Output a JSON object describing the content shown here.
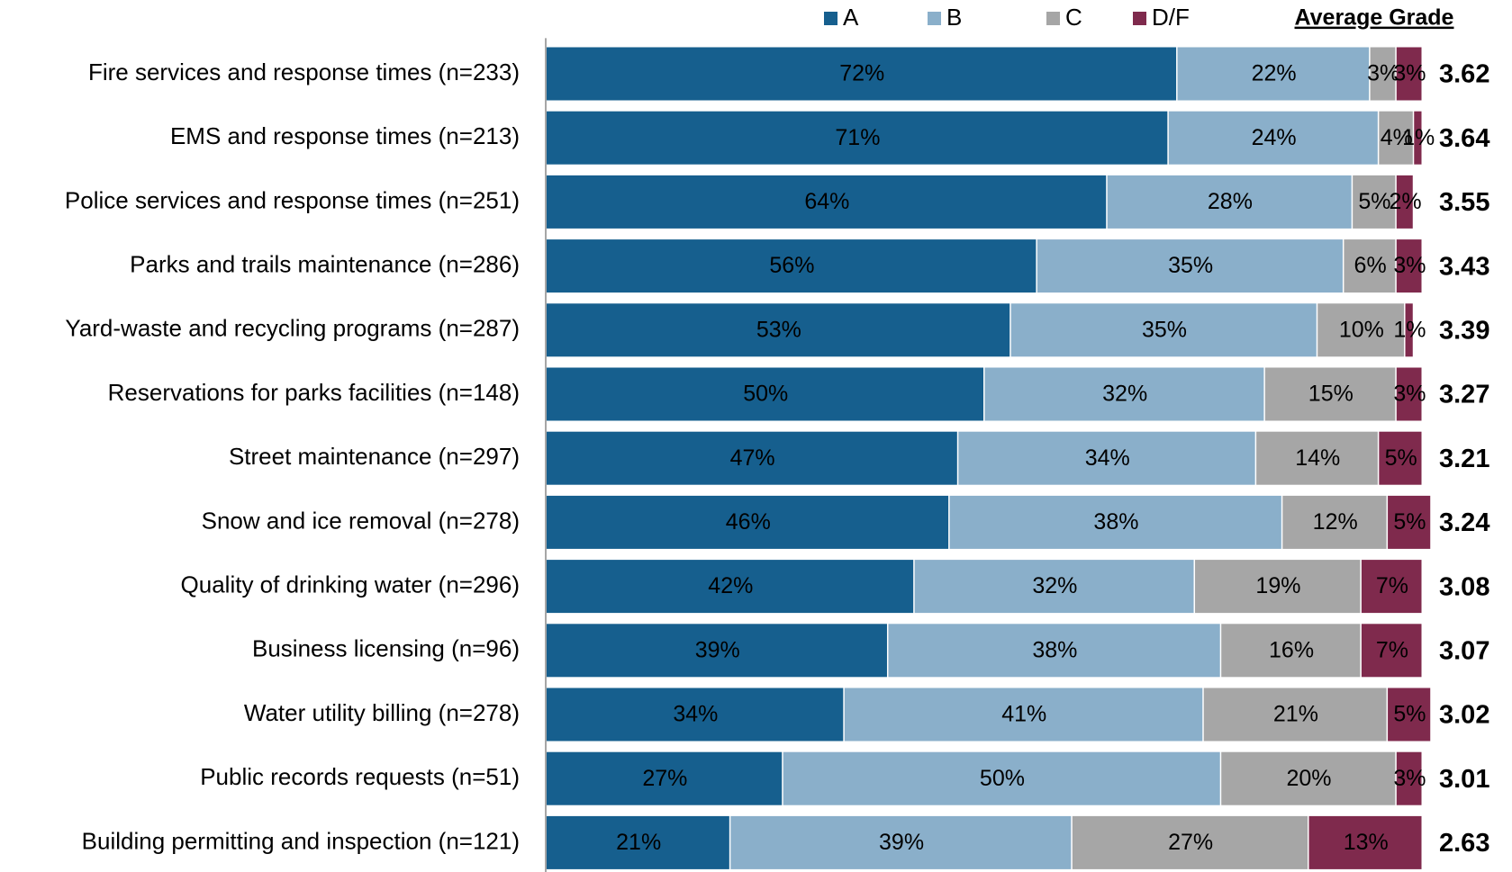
{
  "chart_data": {
    "type": "stacked-barh",
    "categories": [
      "Fire services and response times (n=233)",
      "EMS and response times (n=213)",
      "Police services and response times (n=251)",
      "Parks and trails maintenance (n=286)",
      "Yard-waste and recycling programs (n=287)",
      "Reservations for parks facilities  (n=148)",
      "Street maintenance (n=297)",
      "Snow and ice removal (n=278)",
      "Quality of drinking water (n=296)",
      "Business licensing  (n=96)",
      "Water utility billing (n=278)",
      "Public records requests  (n=51)",
      "Building permitting and inspection  (n=121)"
    ],
    "series": [
      {
        "name": "A",
        "color": "#165f8e",
        "values": [
          72,
          71,
          64,
          56,
          53,
          50,
          47,
          46,
          42,
          39,
          34,
          27,
          21
        ],
        "value_labels": [
          "72%",
          "71%",
          "64%",
          "56%",
          "53%",
          "50%",
          "47%",
          "46%",
          "42%",
          "39%",
          "34%",
          "27%",
          "21%"
        ]
      },
      {
        "name": "B",
        "color": "#8aafca",
        "values": [
          22,
          24,
          28,
          35,
          35,
          32,
          34,
          38,
          32,
          38,
          41,
          50,
          39
        ],
        "value_labels": [
          "22%",
          "24%",
          "28%",
          "35%",
          "35%",
          "32%",
          "34%",
          "38%",
          "32%",
          "38%",
          "41%",
          "50%",
          "39%"
        ]
      },
      {
        "name": "C",
        "color": "#a6a6a6",
        "values": [
          3,
          4,
          5,
          6,
          10,
          15,
          14,
          12,
          19,
          16,
          21,
          20,
          27
        ],
        "value_labels": [
          "3%",
          "4%",
          "5%",
          "6%",
          "10%",
          "15%",
          "14%",
          "12%",
          "19%",
          "16%",
          "21%",
          "20%",
          "27%"
        ]
      },
      {
        "name": "D/F",
        "color": "#7f2a4d",
        "values": [
          3,
          1,
          2,
          3,
          1,
          3,
          5,
          5,
          7,
          7,
          5,
          3,
          13
        ],
        "value_labels": [
          "3%",
          "1%",
          "2%",
          "3%",
          "1%",
          "3%",
          "5%",
          "5%",
          "7%",
          "7%",
          "5%",
          "3%",
          "13%"
        ]
      }
    ],
    "xlim": [
      0,
      100
    ],
    "average_grade": {
      "title": "Average Grade",
      "values": [
        3.62,
        3.64,
        3.55,
        3.43,
        3.39,
        3.27,
        3.21,
        3.24,
        3.08,
        3.07,
        3.02,
        3.01,
        2.63
      ]
    }
  }
}
